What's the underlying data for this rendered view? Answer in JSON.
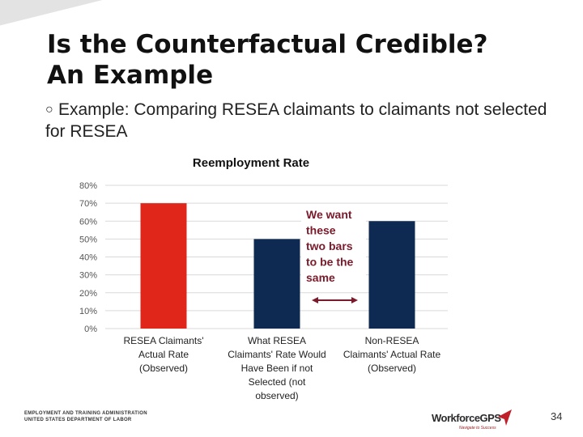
{
  "title": {
    "line1": "Is the Counterfactual Credible?",
    "line2": "An Example"
  },
  "bullet": {
    "marker": "○",
    "text": "Example: Comparing RESEA claimants to claimants not selected for RESEA"
  },
  "chart_data": {
    "type": "bar",
    "title": "Reemployment Rate",
    "xlabel": "",
    "ylabel": "",
    "ylim": [
      0,
      0.8
    ],
    "ytick_labels": [
      "0%",
      "10%",
      "20%",
      "30%",
      "40%",
      "50%",
      "60%",
      "70%",
      "80%"
    ],
    "grid": true,
    "categories": [
      [
        "RESEA Claimants'",
        "Actual Rate",
        "(Observed)"
      ],
      [
        "What RESEA",
        "Claimants' Rate Would",
        "Have Been if not",
        "Selected (not",
        "observed)"
      ],
      [
        "Non-RESEA",
        "Claimants' Actual Rate",
        "(Observed)"
      ]
    ],
    "values": [
      0.7,
      0.5,
      0.6
    ],
    "colors": [
      "#e0251b",
      "#0e2a52",
      "#0e2a52"
    ],
    "annotation": {
      "lines": [
        "We want",
        "these",
        "two bars",
        "to be the",
        "same"
      ],
      "color": "#7a1a2a"
    }
  },
  "footer": {
    "agency_line1": "EMPLOYMENT AND TRAINING ADMINISTRATION",
    "agency_line2": "UNITED STATES DEPARTMENT OF LABOR",
    "logo_text": "WorkforceGPS",
    "logo_sub": "Navigate to Success",
    "page_number": "34"
  }
}
